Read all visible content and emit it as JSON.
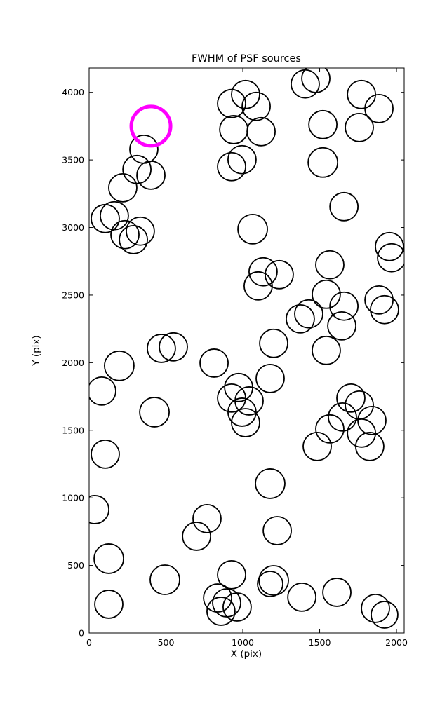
{
  "chart_data": {
    "type": "scatter",
    "title": "FWHM of PSF sources",
    "xlabel": "X (pix)",
    "ylabel": "Y (pix)",
    "xlim": [
      0,
      2050
    ],
    "ylim": [
      0,
      4180
    ],
    "xticks": [
      0,
      500,
      1000,
      1500,
      2000
    ],
    "yticks": [
      0,
      500,
      1000,
      1500,
      2000,
      2500,
      3000,
      3500,
      4000
    ],
    "grid": false,
    "legend": false,
    "marker": {
      "shape": "circle",
      "fill": "none",
      "stroke": "#000000",
      "stroke_width": 1.8,
      "default_radius_px": 20
    },
    "highlight": {
      "x": 402,
      "y": 3750,
      "radius_px": 28,
      "color": "#ff00ff",
      "stroke_width": 5
    },
    "points": [
      {
        "x": 1406,
        "y": 4062,
        "r": 20
      },
      {
        "x": 1475,
        "y": 4103,
        "r": 20
      },
      {
        "x": 1018,
        "y": 3984,
        "r": 20
      },
      {
        "x": 927,
        "y": 3917,
        "r": 20
      },
      {
        "x": 1087,
        "y": 3896,
        "r": 20
      },
      {
        "x": 1772,
        "y": 3984,
        "r": 20
      },
      {
        "x": 1886,
        "y": 3880,
        "r": 20
      },
      {
        "x": 1758,
        "y": 3740,
        "r": 20
      },
      {
        "x": 941,
        "y": 3724,
        "r": 20
      },
      {
        "x": 1119,
        "y": 3709,
        "r": 20
      },
      {
        "x": 1521,
        "y": 3761,
        "r": 20
      },
      {
        "x": 356,
        "y": 3579,
        "r": 20
      },
      {
        "x": 995,
        "y": 3502,
        "r": 20
      },
      {
        "x": 927,
        "y": 3450,
        "r": 20
      },
      {
        "x": 1521,
        "y": 3481,
        "r": 21
      },
      {
        "x": 311,
        "y": 3429,
        "r": 20
      },
      {
        "x": 402,
        "y": 3387,
        "r": 20
      },
      {
        "x": 219,
        "y": 3294,
        "r": 20
      },
      {
        "x": 105,
        "y": 3066,
        "r": 20
      },
      {
        "x": 164,
        "y": 3087,
        "r": 20
      },
      {
        "x": 233,
        "y": 2947,
        "r": 20
      },
      {
        "x": 288,
        "y": 2910,
        "r": 20
      },
      {
        "x": 333,
        "y": 2973,
        "r": 20
      },
      {
        "x": 1658,
        "y": 3154,
        "r": 20
      },
      {
        "x": 1064,
        "y": 2988,
        "r": 21
      },
      {
        "x": 1954,
        "y": 2859,
        "r": 20
      },
      {
        "x": 1968,
        "y": 2776,
        "r": 20
      },
      {
        "x": 1132,
        "y": 2672,
        "r": 20
      },
      {
        "x": 1237,
        "y": 2651,
        "r": 20
      },
      {
        "x": 1100,
        "y": 2568,
        "r": 20
      },
      {
        "x": 1566,
        "y": 2724,
        "r": 20
      },
      {
        "x": 1543,
        "y": 2506,
        "r": 20
      },
      {
        "x": 1886,
        "y": 2464,
        "r": 20
      },
      {
        "x": 1922,
        "y": 2392,
        "r": 20
      },
      {
        "x": 1658,
        "y": 2418,
        "r": 20
      },
      {
        "x": 1644,
        "y": 2272,
        "r": 20
      },
      {
        "x": 1374,
        "y": 2324,
        "r": 20
      },
      {
        "x": 1429,
        "y": 2361,
        "r": 20
      },
      {
        "x": 1201,
        "y": 2143,
        "r": 20
      },
      {
        "x": 1543,
        "y": 2091,
        "r": 20
      },
      {
        "x": 470,
        "y": 2106,
        "r": 20
      },
      {
        "x": 548,
        "y": 2117,
        "r": 20
      },
      {
        "x": 196,
        "y": 1977,
        "r": 21
      },
      {
        "x": 813,
        "y": 1997,
        "r": 20
      },
      {
        "x": 82,
        "y": 1790,
        "r": 20
      },
      {
        "x": 973,
        "y": 1816,
        "r": 20
      },
      {
        "x": 1178,
        "y": 1883,
        "r": 20
      },
      {
        "x": 927,
        "y": 1738,
        "r": 20
      },
      {
        "x": 1041,
        "y": 1717,
        "r": 20
      },
      {
        "x": 995,
        "y": 1634,
        "r": 20
      },
      {
        "x": 1018,
        "y": 1556,
        "r": 20
      },
      {
        "x": 425,
        "y": 1634,
        "r": 21
      },
      {
        "x": 1703,
        "y": 1738,
        "r": 20
      },
      {
        "x": 1758,
        "y": 1686,
        "r": 20
      },
      {
        "x": 1648,
        "y": 1598,
        "r": 20
      },
      {
        "x": 1840,
        "y": 1572,
        "r": 20
      },
      {
        "x": 1566,
        "y": 1510,
        "r": 20
      },
      {
        "x": 1772,
        "y": 1479,
        "r": 20
      },
      {
        "x": 1484,
        "y": 1380,
        "r": 20
      },
      {
        "x": 1826,
        "y": 1380,
        "r": 20
      },
      {
        "x": 105,
        "y": 1323,
        "r": 20
      },
      {
        "x": 1178,
        "y": 1105,
        "r": 21
      },
      {
        "x": 37,
        "y": 913,
        "r": 20
      },
      {
        "x": 767,
        "y": 846,
        "r": 20
      },
      {
        "x": 699,
        "y": 716,
        "r": 20
      },
      {
        "x": 1224,
        "y": 757,
        "r": 20
      },
      {
        "x": 128,
        "y": 550,
        "r": 21
      },
      {
        "x": 493,
        "y": 394,
        "r": 21
      },
      {
        "x": 927,
        "y": 431,
        "r": 20
      },
      {
        "x": 1201,
        "y": 389,
        "r": 21
      },
      {
        "x": 1178,
        "y": 363,
        "r": 18
      },
      {
        "x": 836,
        "y": 259,
        "r": 20
      },
      {
        "x": 895,
        "y": 223,
        "r": 20
      },
      {
        "x": 963,
        "y": 192,
        "r": 20
      },
      {
        "x": 858,
        "y": 161,
        "r": 20
      },
      {
        "x": 1384,
        "y": 265,
        "r": 20
      },
      {
        "x": 1612,
        "y": 301,
        "r": 20
      },
      {
        "x": 128,
        "y": 213,
        "r": 20
      },
      {
        "x": 1863,
        "y": 182,
        "r": 20
      },
      {
        "x": 1922,
        "y": 135,
        "r": 19
      }
    ]
  }
}
